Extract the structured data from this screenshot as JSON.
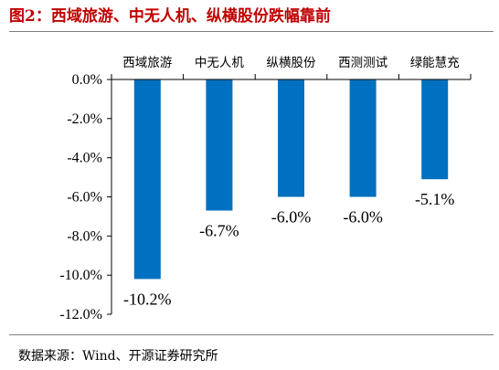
{
  "figure": {
    "title": "图2：西域旅游、中无人机、纵横股份跌幅靠前",
    "source": "数据来源：Wind、开源证券研究所"
  },
  "colors": {
    "title": "#c00000",
    "bar": "#0070c0",
    "axis": "#000000"
  },
  "chart_data": {
    "type": "bar",
    "title": "",
    "xlabel": "",
    "ylabel": "",
    "categories": [
      "西域旅游",
      "中无人机",
      "纵横股份",
      "西测测试",
      "绿能慧充"
    ],
    "values": [
      -10.2,
      -6.7,
      -6.0,
      -6.0,
      -5.1
    ],
    "data_labels": [
      "-10.2%",
      "-6.7%",
      "-6.0%",
      "-6.0%",
      "-5.1%"
    ],
    "ylim": [
      -12,
      0
    ],
    "yticks": [
      0,
      -2,
      -4,
      -6,
      -8,
      -10,
      -12
    ],
    "ytick_labels": [
      "0.0%",
      "-2.0%",
      "-4.0%",
      "-6.0%",
      "-8.0%",
      "-10.0%",
      "-12.0%"
    ],
    "category_axis_position": "top",
    "grid": false,
    "legend": "none"
  }
}
